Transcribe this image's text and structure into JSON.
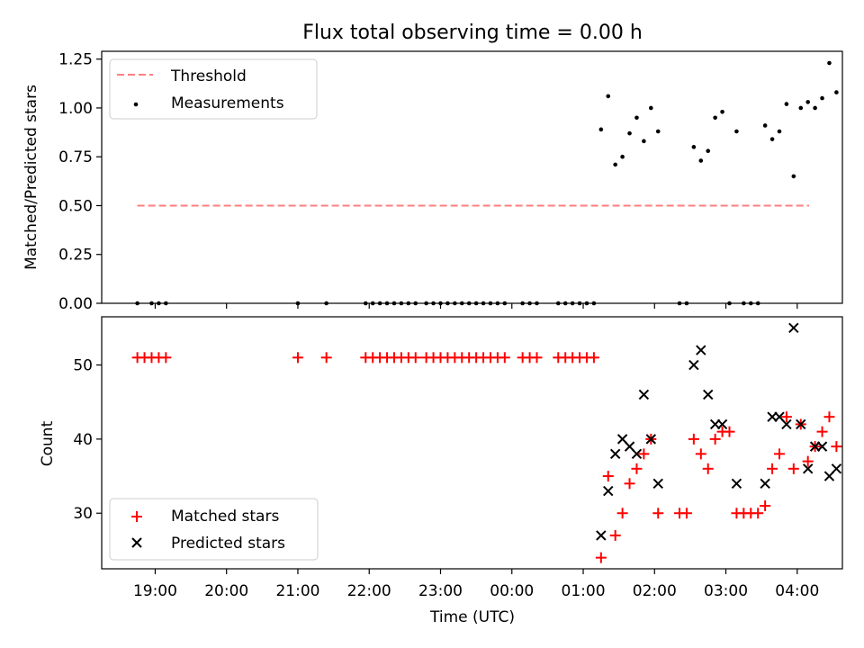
{
  "chart_data": [
    {
      "type": "scatter",
      "title": "Flux total observing time = 0.00 h",
      "ylabel": "Matched/Predicted stars",
      "xlim": [
        "18:15",
        "04:38"
      ],
      "ylim": [
        0,
        1.29
      ],
      "x_ticks": [
        "19:00",
        "20:00",
        "21:00",
        "22:00",
        "23:00",
        "00:00",
        "01:00",
        "02:00",
        "03:00",
        "04:00"
      ],
      "y_ticks": [
        "0.00",
        "0.25",
        "0.50",
        "0.75",
        "1.00",
        "1.25"
      ],
      "legend_position": "upper-left",
      "legend": [
        "Threshold",
        "Measurements"
      ],
      "threshold": {
        "name": "Threshold",
        "y": 0.5,
        "x_start": "18:45",
        "x_end": "04:10",
        "color": "#ff7f7f"
      },
      "series": [
        {
          "name": "Measurements",
          "color": "#000000",
          "points": [
            [
              "18:45",
              0
            ],
            [
              "18:57",
              0
            ],
            [
              "19:03",
              0
            ],
            [
              "19:09",
              0
            ],
            [
              "21:00",
              0
            ],
            [
              "21:24",
              0
            ],
            [
              "21:57",
              0
            ],
            [
              "22:03",
              0
            ],
            [
              "22:09",
              0
            ],
            [
              "22:15",
              0
            ],
            [
              "22:21",
              0
            ],
            [
              "22:27",
              0
            ],
            [
              "22:33",
              0
            ],
            [
              "22:39",
              0
            ],
            [
              "22:48",
              0
            ],
            [
              "22:54",
              0
            ],
            [
              "23:00",
              0
            ],
            [
              "23:06",
              0
            ],
            [
              "23:12",
              0
            ],
            [
              "23:18",
              0
            ],
            [
              "23:24",
              0
            ],
            [
              "23:30",
              0
            ],
            [
              "23:36",
              0
            ],
            [
              "23:42",
              0
            ],
            [
              "23:48",
              0
            ],
            [
              "23:54",
              0
            ],
            [
              "00:09",
              0
            ],
            [
              "00:15",
              0
            ],
            [
              "00:21",
              0
            ],
            [
              "00:39",
              0
            ],
            [
              "00:45",
              0
            ],
            [
              "00:51",
              0
            ],
            [
              "00:57",
              0
            ],
            [
              "01:03",
              0
            ],
            [
              "01:09",
              0
            ],
            [
              "01:15",
              0.89
            ],
            [
              "01:21",
              1.06
            ],
            [
              "01:27",
              0.71
            ],
            [
              "01:33",
              0.75
            ],
            [
              "01:39",
              0.87
            ],
            [
              "01:45",
              0.95
            ],
            [
              "01:51",
              0.83
            ],
            [
              "01:57",
              1.0
            ],
            [
              "02:03",
              0.88
            ],
            [
              "02:21",
              0
            ],
            [
              "02:27",
              0
            ],
            [
              "02:33",
              0.8
            ],
            [
              "02:39",
              0.73
            ],
            [
              "02:45",
              0.78
            ],
            [
              "02:51",
              0.95
            ],
            [
              "02:57",
              0.98
            ],
            [
              "03:03",
              0
            ],
            [
              "03:09",
              0.88
            ],
            [
              "03:15",
              0
            ],
            [
              "03:21",
              0
            ],
            [
              "03:27",
              0
            ],
            [
              "03:33",
              0.91
            ],
            [
              "03:39",
              0.84
            ],
            [
              "03:45",
              0.88
            ],
            [
              "03:51",
              1.02
            ],
            [
              "03:57",
              0.65
            ],
            [
              "04:03",
              1.0
            ],
            [
              "04:09",
              1.03
            ],
            [
              "04:15",
              1.0
            ],
            [
              "04:21",
              1.05
            ],
            [
              "04:27",
              1.23
            ],
            [
              "04:33",
              1.08
            ]
          ]
        }
      ]
    },
    {
      "type": "scatter",
      "xlabel": "Time (UTC)",
      "ylabel": "Count",
      "xlim": [
        "18:15",
        "04:38"
      ],
      "ylim": [
        22.5,
        56.5
      ],
      "x_ticks": [
        "19:00",
        "20:00",
        "21:00",
        "22:00",
        "23:00",
        "00:00",
        "01:00",
        "02:00",
        "03:00",
        "04:00"
      ],
      "y_ticks": [
        "30",
        "40",
        "50"
      ],
      "legend_position": "lower-left",
      "legend": [
        "Matched stars",
        "Predicted stars"
      ],
      "series": [
        {
          "name": "Matched stars",
          "color": "#ff0000",
          "marker": "plus",
          "points": [
            [
              "18:45",
              51
            ],
            [
              "18:51",
              51
            ],
            [
              "18:57",
              51
            ],
            [
              "19:03",
              51
            ],
            [
              "19:09",
              51
            ],
            [
              "21:00",
              51
            ],
            [
              "21:24",
              51
            ],
            [
              "21:57",
              51
            ],
            [
              "22:03",
              51
            ],
            [
              "22:09",
              51
            ],
            [
              "22:15",
              51
            ],
            [
              "22:21",
              51
            ],
            [
              "22:27",
              51
            ],
            [
              "22:33",
              51
            ],
            [
              "22:39",
              51
            ],
            [
              "22:48",
              51
            ],
            [
              "22:54",
              51
            ],
            [
              "23:00",
              51
            ],
            [
              "23:06",
              51
            ],
            [
              "23:12",
              51
            ],
            [
              "23:18",
              51
            ],
            [
              "23:24",
              51
            ],
            [
              "23:30",
              51
            ],
            [
              "23:36",
              51
            ],
            [
              "23:42",
              51
            ],
            [
              "23:48",
              51
            ],
            [
              "23:54",
              51
            ],
            [
              "00:09",
              51
            ],
            [
              "00:15",
              51
            ],
            [
              "00:21",
              51
            ],
            [
              "00:39",
              51
            ],
            [
              "00:45",
              51
            ],
            [
              "00:51",
              51
            ],
            [
              "00:57",
              51
            ],
            [
              "01:03",
              51
            ],
            [
              "01:09",
              51
            ],
            [
              "01:15",
              24
            ],
            [
              "01:21",
              35
            ],
            [
              "01:27",
              27
            ],
            [
              "01:33",
              30
            ],
            [
              "01:39",
              34
            ],
            [
              "01:45",
              36
            ],
            [
              "01:51",
              38
            ],
            [
              "01:57",
              40
            ],
            [
              "02:03",
              30
            ],
            [
              "02:21",
              30
            ],
            [
              "02:27",
              30
            ],
            [
              "02:33",
              40
            ],
            [
              "02:39",
              38
            ],
            [
              "02:45",
              36
            ],
            [
              "02:51",
              40
            ],
            [
              "02:57",
              41
            ],
            [
              "03:03",
              41
            ],
            [
              "03:09",
              30
            ],
            [
              "03:15",
              30
            ],
            [
              "03:21",
              30
            ],
            [
              "03:27",
              30
            ],
            [
              "03:33",
              31
            ],
            [
              "03:39",
              36
            ],
            [
              "03:45",
              38
            ],
            [
              "03:51",
              43
            ],
            [
              "03:57",
              36
            ],
            [
              "04:03",
              42
            ],
            [
              "04:09",
              37
            ],
            [
              "04:15",
              39
            ],
            [
              "04:21",
              41
            ],
            [
              "04:27",
              43
            ],
            [
              "04:33",
              39
            ]
          ]
        },
        {
          "name": "Predicted stars",
          "color": "#000000",
          "marker": "x",
          "points": [
            [
              "01:15",
              27
            ],
            [
              "01:21",
              33
            ],
            [
              "01:27",
              38
            ],
            [
              "01:33",
              40
            ],
            [
              "01:39",
              39
            ],
            [
              "01:45",
              38
            ],
            [
              "01:51",
              46
            ],
            [
              "01:57",
              40
            ],
            [
              "02:03",
              34
            ],
            [
              "02:33",
              50
            ],
            [
              "02:39",
              52
            ],
            [
              "02:45",
              46
            ],
            [
              "02:51",
              42
            ],
            [
              "02:57",
              42
            ],
            [
              "03:09",
              34
            ],
            [
              "03:33",
              34
            ],
            [
              "03:39",
              43
            ],
            [
              "03:45",
              43
            ],
            [
              "03:51",
              42
            ],
            [
              "03:57",
              55
            ],
            [
              "04:03",
              42
            ],
            [
              "04:09",
              36
            ],
            [
              "04:15",
              39
            ],
            [
              "04:21",
              39
            ],
            [
              "04:27",
              35
            ],
            [
              "04:33",
              36
            ]
          ]
        }
      ]
    }
  ]
}
